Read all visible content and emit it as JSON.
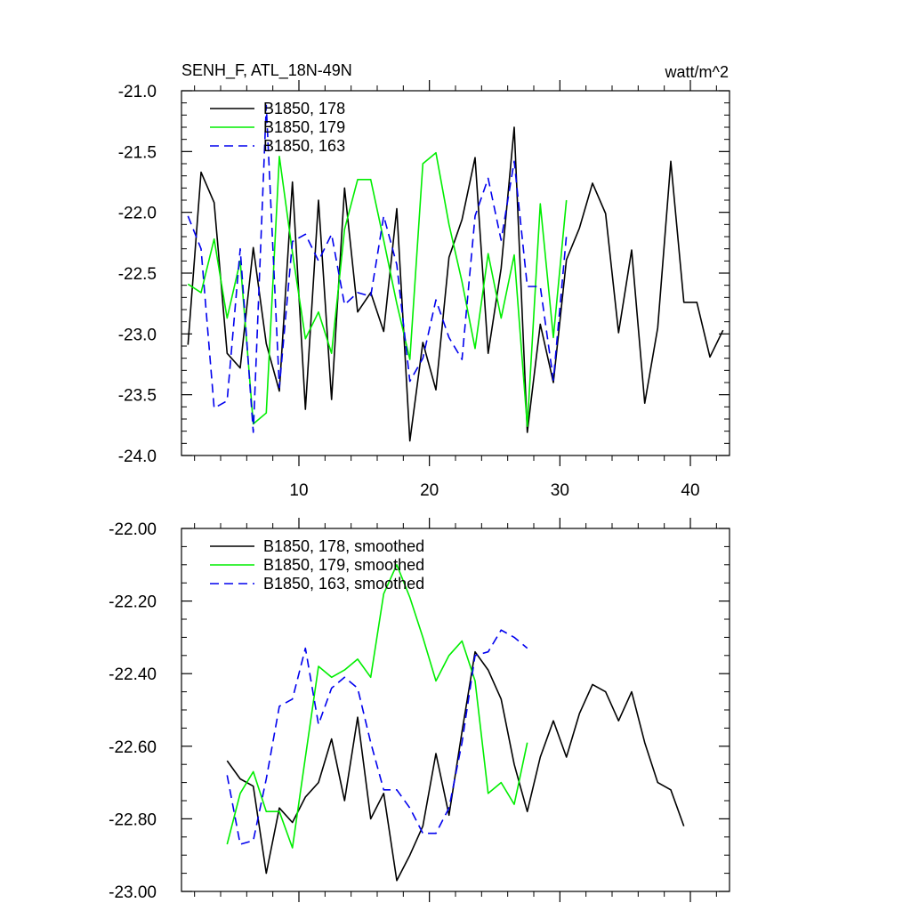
{
  "chart_data": [
    {
      "type": "line",
      "title_left": "SENH_F, ATL_18N-49N",
      "title_right": "watt/m^2",
      "xlim": [
        1,
        43
      ],
      "ylim": [
        -24.0,
        -21.0
      ],
      "xticks": [
        10,
        20,
        30,
        40
      ],
      "xtick_labels": [
        "10",
        "20",
        "30",
        "40"
      ],
      "yticks": [
        -24.0,
        -23.5,
        -23.0,
        -22.5,
        -22.0,
        -21.5,
        -21.0
      ],
      "ytick_labels": [
        "-24.0",
        "-23.5",
        "-23.0",
        "-22.5",
        "-22.0",
        "-21.5",
        "-21.0"
      ],
      "legend_position": "top-left",
      "grid": false,
      "series": [
        {
          "name": "B1850, 178",
          "color": "#000000",
          "dash": "solid",
          "x": [
            1.5,
            2.5,
            3.5,
            4.5,
            5.5,
            6.5,
            7.5,
            8.5,
            9.5,
            10.5,
            11.5,
            12.5,
            13.5,
            14.5,
            15.5,
            16.5,
            17.5,
            18.5,
            19.5,
            20.5,
            21.5,
            22.5,
            23.5,
            24.5,
            25.5,
            26.5,
            27.5,
            28.5,
            29.5,
            30.5,
            31.5,
            32.5,
            33.5,
            34.5,
            35.5,
            36.5,
            37.5,
            38.5,
            39.5,
            40.5,
            41.5,
            42.5
          ],
          "y": [
            -23.09,
            -21.67,
            -21.92,
            -23.16,
            -23.28,
            -22.29,
            -23.08,
            -23.47,
            -21.75,
            -23.62,
            -21.9,
            -23.54,
            -21.8,
            -22.82,
            -22.66,
            -22.98,
            -21.97,
            -23.88,
            -23.07,
            -23.46,
            -22.37,
            -22.06,
            -21.55,
            -23.16,
            -22.46,
            -21.3,
            -23.81,
            -22.92,
            -23.4,
            -22.39,
            -22.13,
            -21.76,
            -22.01,
            -22.99,
            -22.31,
            -23.57,
            -22.95,
            -21.58,
            -22.74,
            -22.74,
            -23.19,
            -22.97
          ]
        },
        {
          "name": "B1850, 179",
          "color": "#00ee00",
          "dash": "solid",
          "x": [
            1.5,
            2.5,
            3.5,
            4.5,
            5.5,
            6.5,
            7.5,
            8.5,
            9.5,
            10.5,
            11.5,
            12.5,
            13.5,
            14.5,
            15.5,
            16.5,
            17.5,
            18.5,
            19.5,
            20.5,
            21.5,
            22.5,
            23.5,
            24.5,
            25.5,
            26.5,
            27.5,
            28.5,
            29.5,
            30.5
          ],
          "y": [
            -22.59,
            -22.66,
            -22.22,
            -22.87,
            -22.4,
            -23.74,
            -23.65,
            -21.54,
            -22.33,
            -23.04,
            -22.82,
            -23.16,
            -22.14,
            -21.73,
            -21.73,
            -22.23,
            -22.75,
            -23.21,
            -21.6,
            -21.51,
            -22.1,
            -22.57,
            -23.12,
            -22.34,
            -22.87,
            -22.35,
            -23.76,
            -21.93,
            -23.03,
            -21.9
          ]
        },
        {
          "name": "B1850, 163",
          "color": "#0000ee",
          "dash": "dashed",
          "x": [
            1.5,
            2.5,
            3.5,
            4.5,
            5.5,
            6.5,
            7.5,
            8.5,
            9.5,
            10.5,
            11.5,
            12.5,
            13.5,
            14.5,
            15.5,
            16.5,
            17.5,
            18.5,
            19.5,
            20.5,
            21.5,
            22.5,
            23.5,
            24.5,
            25.5,
            26.5,
            27.5,
            28.5,
            29.5,
            30.5
          ],
          "y": [
            -22.03,
            -22.3,
            -23.61,
            -23.55,
            -22.3,
            -23.81,
            -21.12,
            -23.44,
            -22.24,
            -22.18,
            -22.4,
            -22.18,
            -22.76,
            -22.66,
            -22.69,
            -22.03,
            -22.43,
            -23.39,
            -23.2,
            -22.72,
            -23.03,
            -23.21,
            -22.03,
            -21.72,
            -22.23,
            -21.58,
            -22.61,
            -22.61,
            -23.38,
            -22.19
          ]
        }
      ]
    },
    {
      "type": "line",
      "xlim": [
        1,
        43
      ],
      "ylim": [
        -23.0,
        -22.0
      ],
      "yticks": [
        -23.0,
        -22.8,
        -22.6,
        -22.4,
        -22.2,
        -22.0
      ],
      "ytick_labels": [
        "-23.00",
        "-22.80",
        "-22.60",
        "-22.40",
        "-22.20",
        "-22.00"
      ],
      "xticks": [
        10,
        20,
        30,
        40
      ],
      "legend_position": "top-left",
      "grid": false,
      "series": [
        {
          "name": "B1850, 178, smoothed",
          "color": "#000000",
          "dash": "solid",
          "x": [
            4.5,
            5.5,
            6.5,
            7.5,
            8.5,
            9.5,
            10.5,
            11.5,
            12.5,
            13.5,
            14.5,
            15.5,
            16.5,
            17.5,
            18.5,
            19.5,
            20.5,
            21.5,
            22.5,
            23.5,
            24.5,
            25.5,
            26.5,
            27.5,
            28.5,
            29.5,
            30.5,
            31.5,
            32.5,
            33.5,
            34.5,
            35.5,
            36.5,
            37.5,
            38.5,
            39.5
          ],
          "y": [
            -22.64,
            -22.69,
            -22.71,
            -22.95,
            -22.77,
            -22.81,
            -22.74,
            -22.7,
            -22.58,
            -22.75,
            -22.52,
            -22.8,
            -22.73,
            -22.97,
            -22.9,
            -22.82,
            -22.62,
            -22.79,
            -22.56,
            -22.34,
            -22.39,
            -22.47,
            -22.65,
            -22.78,
            -22.63,
            -22.53,
            -22.63,
            -22.51,
            -22.43,
            -22.45,
            -22.53,
            -22.45,
            -22.59,
            -22.7,
            -22.72,
            -22.82
          ]
        },
        {
          "name": "B1850, 179, smoothed",
          "color": "#00ee00",
          "dash": "solid",
          "x": [
            4.5,
            5.5,
            6.5,
            7.5,
            8.5,
            9.5,
            10.5,
            11.5,
            12.5,
            13.5,
            14.5,
            15.5,
            16.5,
            17.5,
            18.5,
            19.5,
            20.5,
            21.5,
            22.5,
            23.5,
            24.5,
            25.5,
            26.5,
            27.5
          ],
          "y": [
            -22.87,
            -22.73,
            -22.67,
            -22.78,
            -22.78,
            -22.88,
            -22.63,
            -22.38,
            -22.41,
            -22.39,
            -22.36,
            -22.41,
            -22.18,
            -22.1,
            -22.19,
            -22.3,
            -22.42,
            -22.35,
            -22.31,
            -22.42,
            -22.73,
            -22.7,
            -22.76,
            -22.59
          ]
        },
        {
          "name": "B1850, 163, smoothed",
          "color": "#0000ee",
          "dash": "dashed",
          "x": [
            4.5,
            5.5,
            6.5,
            7.5,
            8.5,
            9.5,
            10.5,
            11.5,
            12.5,
            13.5,
            14.5,
            15.5,
            16.5,
            17.5,
            18.5,
            19.5,
            20.5,
            21.5,
            22.5,
            23.5,
            24.5,
            25.5,
            26.5,
            27.5
          ],
          "y": [
            -22.68,
            -22.87,
            -22.86,
            -22.69,
            -22.49,
            -22.47,
            -22.33,
            -22.54,
            -22.44,
            -22.41,
            -22.44,
            -22.59,
            -22.72,
            -22.72,
            -22.77,
            -22.84,
            -22.84,
            -22.77,
            -22.59,
            -22.35,
            -22.34,
            -22.28,
            -22.3,
            -22.33
          ]
        }
      ]
    }
  ]
}
